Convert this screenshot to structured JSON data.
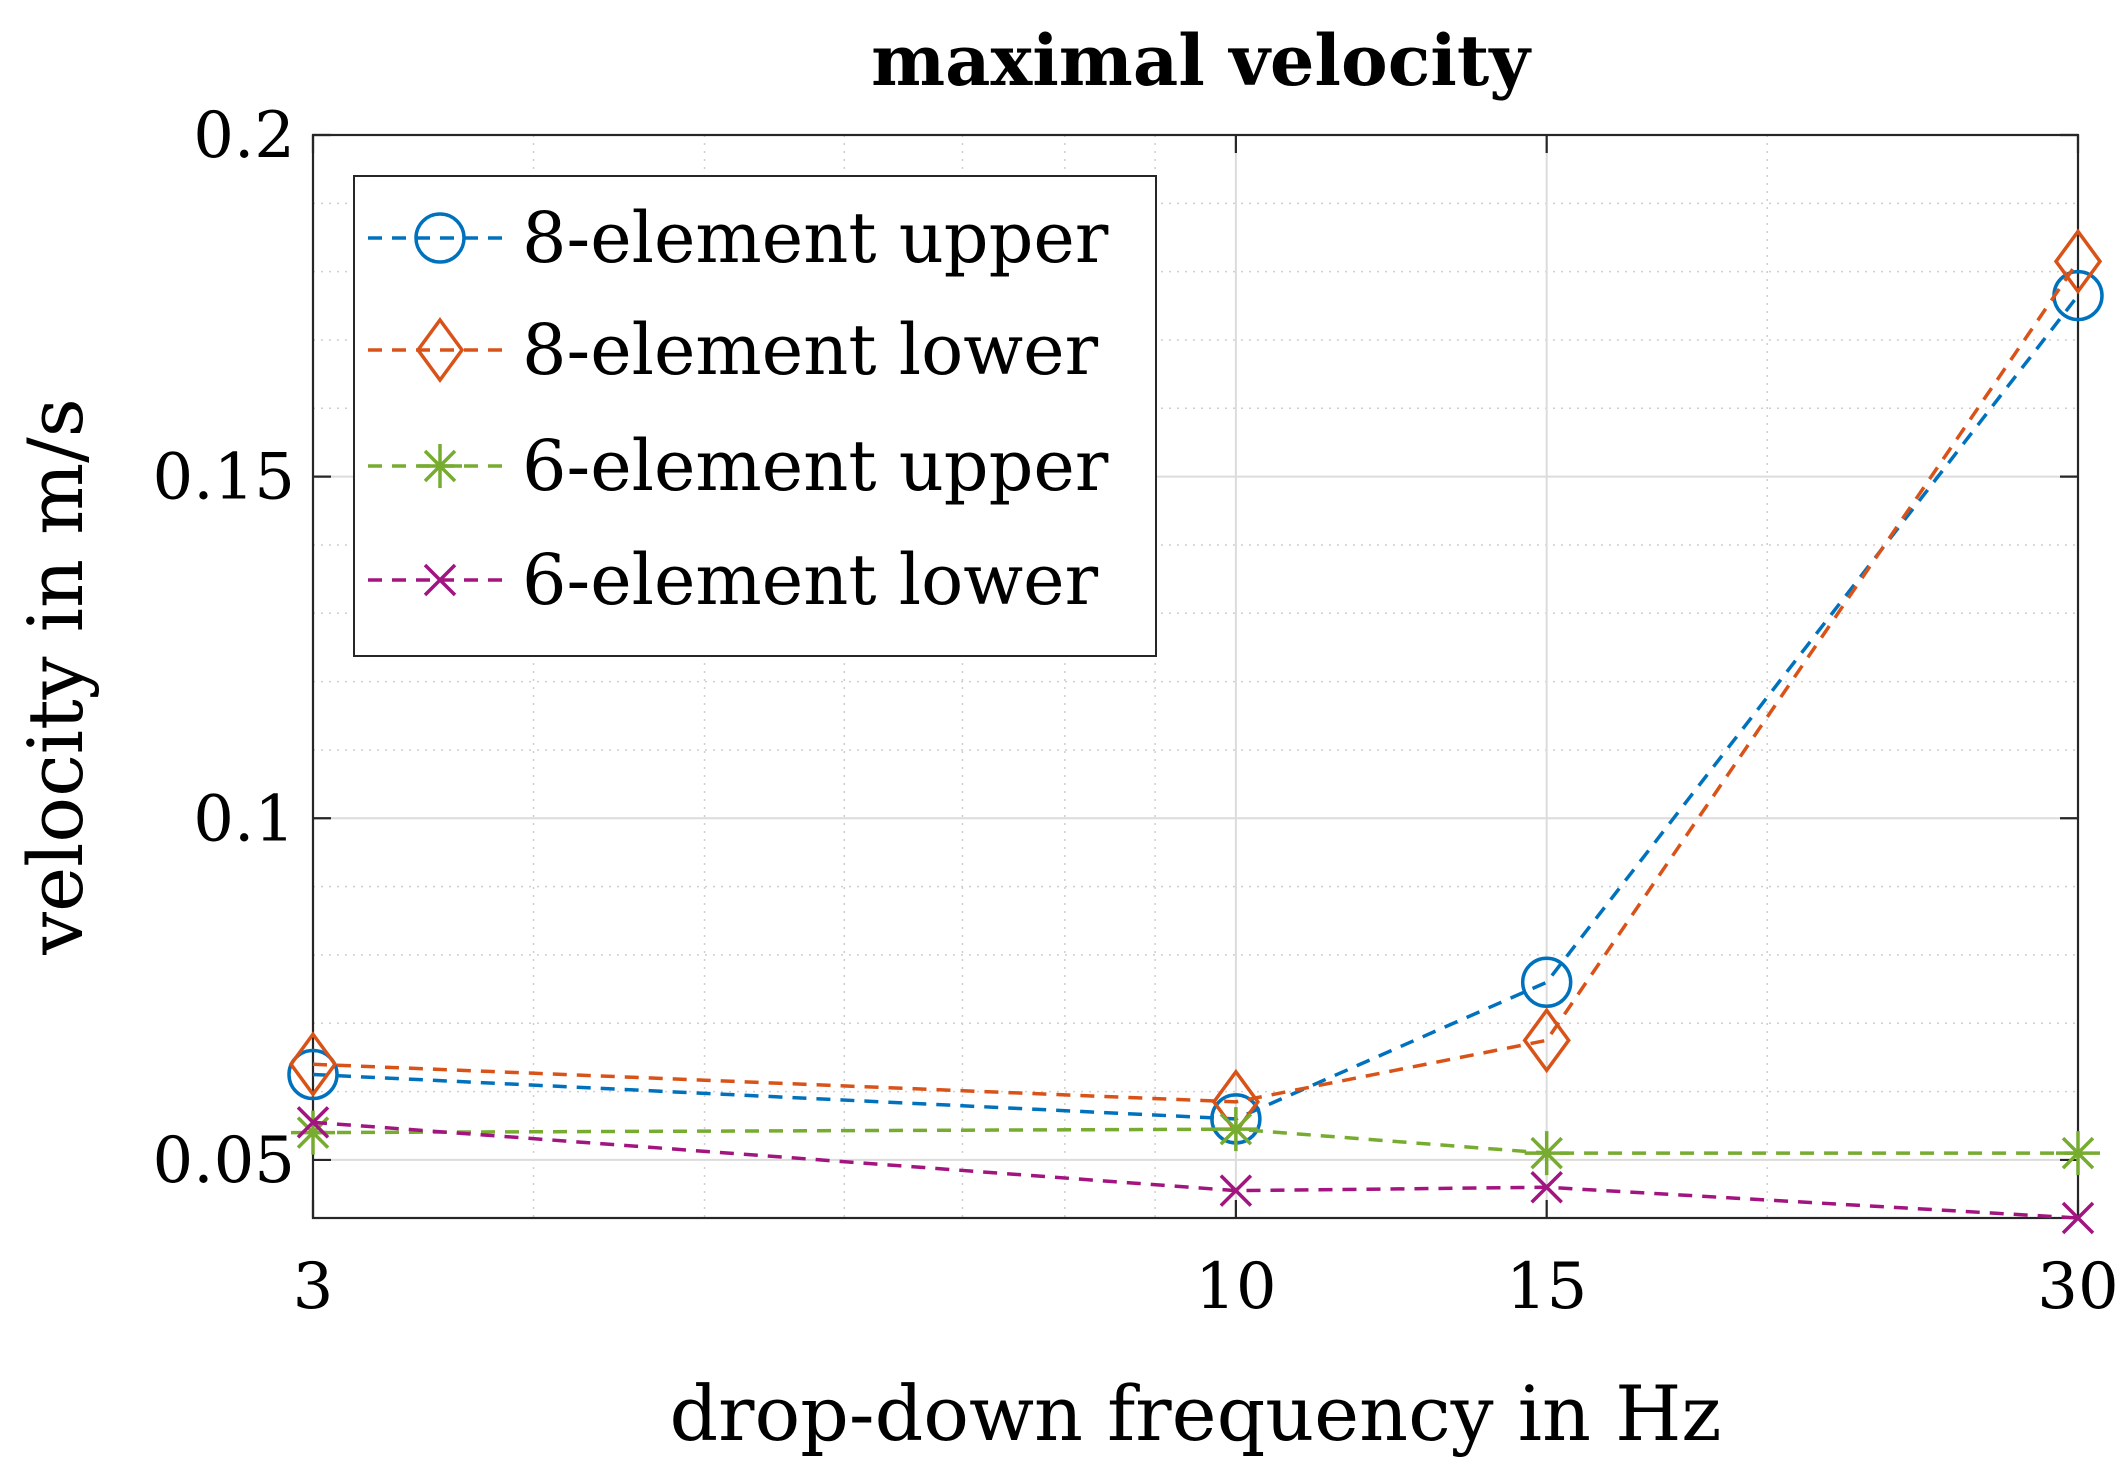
{
  "chart_data": {
    "type": "line",
    "title": "maximal velocity",
    "xlabel": "drop-down frequency in Hz",
    "ylabel": "velocity in m/s",
    "x_scale": "log",
    "x": [
      3,
      10,
      15,
      30
    ],
    "xlim": [
      3,
      30
    ],
    "ylim": [
      0.0415,
      0.2
    ],
    "x_ticks": [
      3,
      10,
      15,
      30
    ],
    "x_tick_labels": [
      "3",
      "10",
      "15",
      "30"
    ],
    "y_ticks": [
      0.05,
      0.1,
      0.15,
      0.2
    ],
    "y_tick_labels": [
      "0.05",
      "0.1",
      "0.15",
      "0.2"
    ],
    "grid": true,
    "minor_grid": true,
    "legend_position": "top-left",
    "series": [
      {
        "name": "8-element upper",
        "values": [
          0.0625,
          0.056,
          0.076,
          0.1765
        ],
        "color": "#0072BD",
        "marker": "circle",
        "dash": "dashed"
      },
      {
        "name": "8-element lower",
        "values": [
          0.064,
          0.0585,
          0.0675,
          0.1815
        ],
        "color": "#D95319",
        "marker": "diamond",
        "dash": "dashed"
      },
      {
        "name": "6-element upper",
        "values": [
          0.054,
          0.0545,
          0.051,
          0.051
        ],
        "color": "#77AC30",
        "marker": "asterisk",
        "dash": "dashed"
      },
      {
        "name": "6-element lower",
        "values": [
          0.0555,
          0.0455,
          0.046,
          0.0415
        ],
        "color": "#A2147F",
        "marker": "cross",
        "dash": "dashed"
      }
    ]
  }
}
